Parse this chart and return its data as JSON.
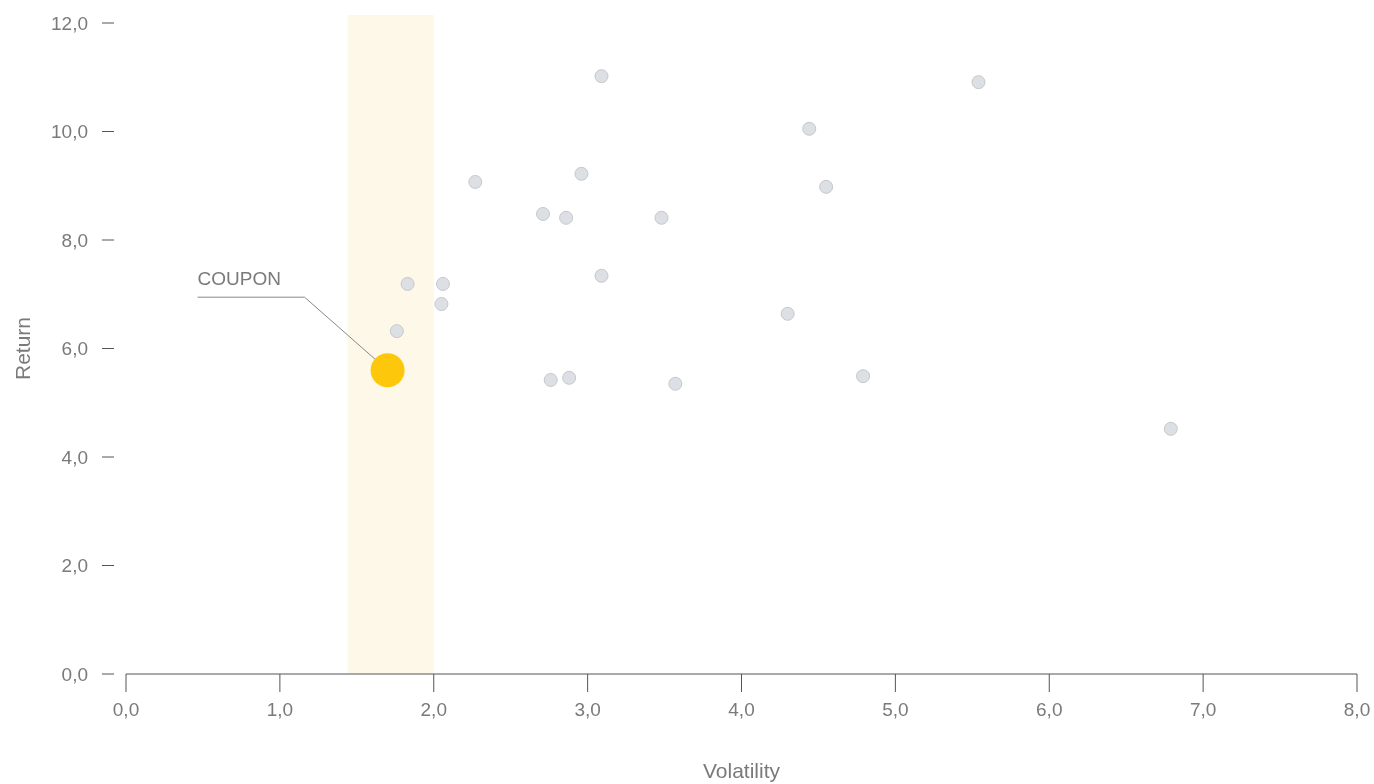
{
  "chart_data": {
    "type": "scatter",
    "xlabel": "Volatility",
    "ylabel": "Return",
    "xlim": [
      0,
      8
    ],
    "ylim": [
      0,
      12
    ],
    "xticks": [
      {
        "value": 0,
        "label": "0,0"
      },
      {
        "value": 1,
        "label": "1,0"
      },
      {
        "value": 2,
        "label": "2,0"
      },
      {
        "value": 3,
        "label": "3,0"
      },
      {
        "value": 4,
        "label": "4,0"
      },
      {
        "value": 5,
        "label": "5,0"
      },
      {
        "value": 6,
        "label": "6,0"
      },
      {
        "value": 7,
        "label": "7,0"
      },
      {
        "value": 8,
        "label": "8,0"
      }
    ],
    "yticks": [
      {
        "value": 0,
        "label": "0,0"
      },
      {
        "value": 2,
        "label": "2,0"
      },
      {
        "value": 4,
        "label": "4,0"
      },
      {
        "value": 6,
        "label": "6,0"
      },
      {
        "value": 8,
        "label": "8,0"
      },
      {
        "value": 10,
        "label": "10,0"
      },
      {
        "value": 12,
        "label": "12,0"
      }
    ],
    "series": [
      {
        "color": "#dcdfe3",
        "x": [
          3.09,
          5.54,
          4.44,
          4.55,
          2.27,
          2.96,
          2.71,
          2.86,
          3.48,
          1.83,
          2.06,
          3.09,
          2.05,
          1.76,
          4.3,
          2.76,
          2.88,
          3.57,
          4.79,
          6.79
        ],
        "values": [
          11.02,
          10.91,
          10.05,
          8.98,
          9.07,
          9.22,
          8.48,
          8.41,
          8.41,
          7.19,
          7.19,
          7.34,
          6.82,
          6.32,
          6.64,
          5.42,
          5.46,
          5.35,
          5.49,
          4.52
        ]
      },
      {
        "color": "#fdc70c",
        "x": [
          1.7
        ],
        "values": [
          5.6
        ]
      }
    ],
    "bands": [
      {
        "axis": "x",
        "from": 1.44,
        "to": 2.0,
        "color": "#fef8e8"
      }
    ],
    "annotations": [
      {
        "text": "COUPON",
        "x": 1.7,
        "y": 5.6
      }
    ],
    "marker": "circle",
    "grid": false
  }
}
